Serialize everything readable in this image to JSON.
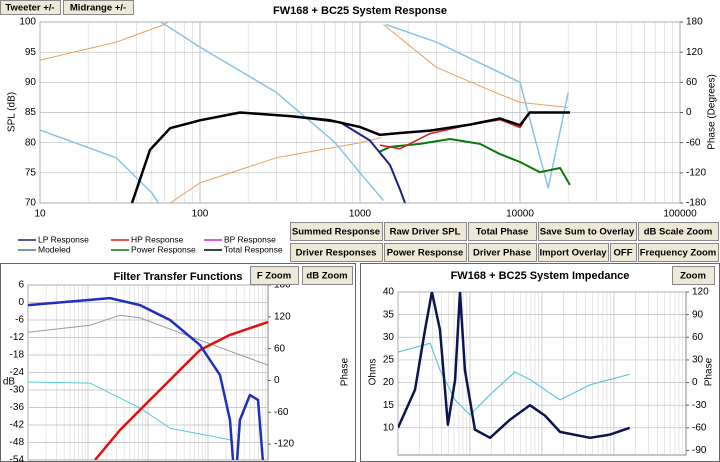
{
  "toolbar": [
    "Tweeter +/-",
    "Midrange +/-"
  ],
  "chart_data": [
    {
      "type": "line",
      "title": "FW168 + BC25   System Response",
      "xscale": "log",
      "xlim": [
        10,
        100000
      ],
      "xticks": [
        10,
        100,
        1000,
        10000,
        100000
      ],
      "ylabel": "SPL (dB)",
      "ylim": [
        70,
        100
      ],
      "yticks": [
        70,
        75,
        80,
        85,
        90,
        95,
        100
      ],
      "y2label": "Phase (Degrees)",
      "y2lim": [
        -180,
        180
      ],
      "y2ticks": [
        -180,
        -120,
        -60,
        0,
        60,
        120,
        180
      ],
      "grid": true,
      "series": [
        {
          "color": "#e8a060",
          "axis": "y2",
          "line_width": 1,
          "x": [
            10,
            30,
            60,
            63,
            null,
            65,
            100,
            300,
            1000,
            1350,
            null,
            1400,
            3000,
            7000,
            10000,
            20000
          ],
          "values": [
            104,
            140,
            175,
            180,
            null,
            -180,
            -140,
            -90,
            -60,
            -50,
            null,
            175,
            90,
            40,
            20,
            10
          ]
        },
        {
          "color": "#87c4ea",
          "axis": "y2",
          "line_width": 1.5,
          "x": [
            10,
            30,
            50,
            55,
            null,
            57,
            100,
            300,
            700,
            1000,
            1400,
            null,
            1450,
            3000,
            10000,
            15000,
            20000
          ],
          "values": [
            -35,
            -90,
            -160,
            -180,
            null,
            180,
            130,
            40,
            -60,
            -120,
            -175,
            null,
            175,
            140,
            60,
            -150,
            40
          ]
        },
        {
          "color": "#0a7a0a",
          "line_width": 2,
          "x": [
            1330,
            1540,
            2370,
            3650,
            5620,
            7500,
            10000,
            13300,
            17800,
            20500
          ],
          "values": [
            78.5,
            79.3,
            79.8,
            80.6,
            79.8,
            78.1,
            76.8,
            75.1,
            75.8,
            73
          ]
        },
        {
          "color": "#d42020",
          "line_width": 1.5,
          "x": [
            1330,
            1780,
            2740,
            4870,
            7500,
            10000,
            11500,
            17800,
            20500
          ],
          "values": [
            79.6,
            79,
            81.5,
            83,
            83.8,
            82.5,
            85,
            85,
            85
          ]
        },
        {
          "color": "#1a237e",
          "line_width": 2,
          "x": [
            37.6,
            48.7,
            65,
            100,
            178,
            365,
            750,
            1150,
            1540,
            1780,
            1910
          ],
          "values": [
            70,
            78.8,
            82.4,
            83.7,
            85,
            84.4,
            83.4,
            80.4,
            76.3,
            72.2,
            70
          ]
        },
        {
          "color": "#000000",
          "line_width": 2.5,
          "x": [
            37.6,
            48.7,
            65,
            100,
            178,
            365,
            650,
            1000,
            1330,
            1780,
            2740,
            4870,
            7500,
            10000,
            11500,
            17800,
            20500
          ],
          "values": [
            70,
            78.8,
            82.4,
            83.7,
            85,
            84.4,
            83.7,
            82.6,
            81.3,
            81.6,
            82,
            83,
            84,
            82.9,
            85,
            85,
            85
          ]
        }
      ],
      "legend": [
        {
          "name": "LP Response",
          "color": "#1a237e"
        },
        {
          "name": "HP Response",
          "color": "#d42020"
        },
        {
          "name": "BP Response",
          "color": "#d020d0"
        },
        {
          "name": "Modeled",
          "color": "#5a6a9a"
        },
        {
          "name": "Power Response",
          "color": "#0a7a0a"
        },
        {
          "name": "Total Response",
          "color": "#000000"
        }
      ],
      "buttons": [
        {
          "label": "Summed Response",
          "color": "#000000"
        },
        {
          "label": "Raw Driver SPL",
          "color": "#000000"
        },
        {
          "label": "Total Phase",
          "color": "#000000"
        },
        {
          "label": "Save Sum to Overlay",
          "color": "#d42020"
        },
        {
          "label": "dB Scale Zoom",
          "color": "#0a7a0a"
        },
        {
          "label": "Driver Responses",
          "color": "#000000"
        },
        {
          "label": "Power Response",
          "color": "#000000"
        },
        {
          "label": "Driver Phase",
          "color": "#000000"
        },
        {
          "label": "Import Overlay",
          "color": "#999999"
        },
        {
          "label": "OFF",
          "color": "#000000"
        },
        {
          "label": "Frequency Zoom",
          "color": "#0a7a0a"
        }
      ]
    },
    {
      "type": "line",
      "title": "Filter Transfer Functions",
      "xscale": "log",
      "xlim": [
        10,
        100000
      ],
      "ylabel": "dB",
      "ylim": [
        -54,
        6
      ],
      "yticks": [
        6,
        0,
        -6,
        -12,
        -18,
        -24,
        -30,
        -36,
        -42,
        -48,
        -54
      ],
      "y2label": "Phase",
      "y2lim": [
        -150,
        180
      ],
      "y2ticks": [
        180,
        120,
        60,
        0,
        -60,
        -120
      ],
      "grid": true,
      "series": [
        {
          "color": "#9a9a9a",
          "axis": "y2",
          "line_width": 1,
          "x": [
            10,
            108,
            341,
            736,
            7360,
            100000
          ],
          "values": [
            91,
            104,
            123,
            118,
            76,
            29
          ]
        },
        {
          "color": "#5cc8d8",
          "axis": "y2",
          "line_width": 1,
          "x": [
            10,
            108,
            736,
            2326,
            23250,
            26100
          ],
          "values": [
            -3,
            -5,
            -52,
            -90,
            -112,
            -115
          ]
        },
        {
          "color": "#e01010",
          "line_width": 2.5,
          "x": [
            131,
            341,
            1080,
            3410,
            7360,
            23250,
            100000
          ],
          "values": [
            -54,
            -43.7,
            -33.4,
            -23.1,
            -16.3,
            -11.1,
            -6.7
          ]
        },
        {
          "color": "#1f2fc0",
          "line_width": 2.5,
          "x": [
            10,
            108,
            232,
            736,
            2326,
            7360,
            15850,
            23250,
            26100,
            null,
            30600,
            34000,
            50000,
            68000,
            82000
          ],
          "values": [
            -0.9,
            0.9,
            1.5,
            -0.9,
            -6,
            -14.6,
            -24.9,
            -40.3,
            -54,
            null,
            -54,
            -40.3,
            -31.7,
            -33.4,
            -54
          ]
        }
      ],
      "buttons": [
        {
          "label": "F Zoom",
          "color": "#000000"
        },
        {
          "label": "dB Zoom",
          "color": "#000000"
        }
      ]
    },
    {
      "type": "line",
      "title": "FW168 + BC25   System Impedance",
      "xscale": "log",
      "xlim": [
        10,
        100000
      ],
      "ylabel": "Ohms",
      "ylim": [
        4,
        40
      ],
      "yticks": [
        10,
        15,
        20,
        25,
        30,
        35,
        40
      ],
      "y2label": "Phase",
      "y2lim": [
        -96,
        120
      ],
      "y2ticks": [
        -90,
        -60,
        -30,
        0,
        30,
        60,
        90,
        120
      ],
      "grid": true,
      "series": [
        {
          "color": "#5cc8d8",
          "axis": "y2",
          "line_width": 1.2,
          "x": [
            10,
            28,
            38.3,
            62,
            100,
            190,
            420,
            680,
            1780,
            4640,
            16500
          ],
          "values": [
            40.5,
            52,
            16.7,
            -23,
            -43,
            -16,
            14,
            4,
            -23,
            -3,
            11
          ]
        },
        {
          "color": "#0d1450",
          "line_width": 2.5,
          "x": [
            10,
            17.2,
            23.7,
            29.6,
            38.3,
            49.4,
            62,
            72.7,
            85,
            117,
            190,
            358,
            680,
            1100,
            1780,
            4640,
            8800,
            16500
          ],
          "values": [
            10,
            18.4,
            31.6,
            40,
            31.6,
            10.7,
            20.6,
            40,
            22.8,
            9.6,
            7.8,
            11.8,
            15,
            12.7,
            9.1,
            7.8,
            8.5,
            10
          ]
        }
      ],
      "buttons": [
        {
          "label": "Zoom",
          "color": "#000000"
        }
      ]
    }
  ]
}
